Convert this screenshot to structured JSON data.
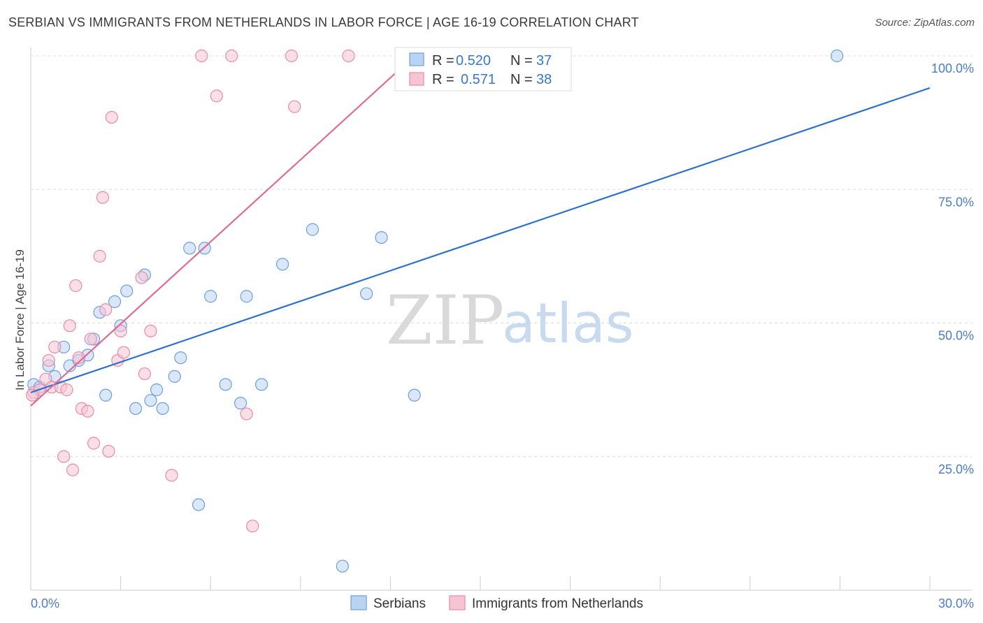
{
  "title": "SERBIAN VS IMMIGRANTS FROM NETHERLANDS IN LABOR FORCE | AGE 16-19 CORRELATION CHART",
  "source": "Source: ZipAtlas.com",
  "watermark": {
    "zip": "ZIP",
    "atlas": "atlas"
  },
  "colors": {
    "serbians_fill": "#b9d3f2",
    "serbians_stroke": "#6d9fdc",
    "serbians_line": "#2f72c9",
    "nl_fill": "#f7c4d3",
    "nl_stroke": "#e98aa8",
    "nl_line": "#e06a93",
    "grid": "#dcdcdc",
    "axis_label": "#4a7cc9"
  },
  "stats": [
    {
      "r_label": "R =",
      "r_value": "0.520",
      "n_label": "N =",
      "n_value": "37"
    },
    {
      "r_label": "R =",
      "r_value": "0.571",
      "n_label": "N =",
      "n_value": "38"
    }
  ],
  "chart_data": {
    "type": "scatter",
    "ylabel": "In Labor Force | Age 16-19",
    "xlim": [
      0,
      30
    ],
    "ylim": [
      0,
      100
    ],
    "x_tick_labels": [
      "0.0%",
      "30.0%"
    ],
    "y_ticks": [
      25,
      50,
      75,
      100
    ],
    "y_tick_labels": [
      "25.0%",
      "50.0%",
      "75.0%",
      "100.0%"
    ],
    "grid": true,
    "legend_position": "bottom-center",
    "series": [
      {
        "name": "Serbians",
        "points": [
          [
            0.1,
            38.5
          ],
          [
            0.3,
            38.0
          ],
          [
            0.6,
            42.0
          ],
          [
            0.8,
            40.0
          ],
          [
            1.1,
            45.5
          ],
          [
            1.3,
            42.0
          ],
          [
            1.6,
            43.0
          ],
          [
            1.9,
            44.0
          ],
          [
            2.1,
            47.0
          ],
          [
            2.3,
            52.0
          ],
          [
            2.5,
            36.5
          ],
          [
            2.8,
            54.0
          ],
          [
            3.0,
            49.5
          ],
          [
            3.2,
            56.0
          ],
          [
            3.5,
            34.0
          ],
          [
            3.8,
            59.0
          ],
          [
            4.0,
            35.5
          ],
          [
            4.2,
            37.5
          ],
          [
            4.4,
            34.0
          ],
          [
            4.8,
            40.0
          ],
          [
            5.0,
            43.5
          ],
          [
            5.3,
            64.0
          ],
          [
            5.6,
            16.0
          ],
          [
            5.8,
            64.0
          ],
          [
            6.0,
            55.0
          ],
          [
            6.5,
            38.5
          ],
          [
            7.0,
            35.0
          ],
          [
            7.2,
            55.0
          ],
          [
            7.7,
            38.5
          ],
          [
            8.4,
            61.0
          ],
          [
            9.4,
            67.5
          ],
          [
            10.4,
            4.5
          ],
          [
            11.2,
            55.5
          ],
          [
            11.7,
            66.0
          ],
          [
            12.8,
            36.5
          ],
          [
            13.5,
            100.0
          ],
          [
            26.9,
            100.0
          ]
        ],
        "trend": {
          "x": [
            0,
            30
          ],
          "y": [
            37.0,
            94.0
          ]
        }
      },
      {
        "name": "Immigrants from Netherlands",
        "points": [
          [
            0.1,
            37.0
          ],
          [
            0.3,
            37.5
          ],
          [
            0.5,
            39.5
          ],
          [
            0.6,
            43.0
          ],
          [
            0.7,
            38.0
          ],
          [
            0.8,
            45.5
          ],
          [
            1.0,
            38.0
          ],
          [
            1.1,
            25.0
          ],
          [
            1.2,
            37.5
          ],
          [
            1.3,
            49.5
          ],
          [
            1.4,
            22.5
          ],
          [
            1.5,
            57.0
          ],
          [
            1.6,
            43.5
          ],
          [
            1.7,
            34.0
          ],
          [
            1.9,
            33.5
          ],
          [
            2.0,
            47.0
          ],
          [
            2.1,
            27.5
          ],
          [
            2.3,
            62.5
          ],
          [
            2.4,
            73.5
          ],
          [
            2.5,
            52.5
          ],
          [
            2.6,
            26.0
          ],
          [
            2.7,
            88.5
          ],
          [
            2.9,
            43.0
          ],
          [
            3.0,
            48.5
          ],
          [
            3.1,
            44.5
          ],
          [
            3.7,
            58.5
          ],
          [
            3.8,
            40.5
          ],
          [
            4.0,
            48.5
          ],
          [
            4.7,
            21.5
          ],
          [
            5.7,
            100.0
          ],
          [
            6.2,
            92.5
          ],
          [
            6.7,
            100.0
          ],
          [
            7.2,
            33.0
          ],
          [
            7.4,
            12.0
          ],
          [
            8.7,
            100.0
          ],
          [
            8.8,
            90.5
          ],
          [
            10.6,
            100.0
          ],
          [
            0.05,
            36.5
          ]
        ],
        "trend": {
          "x": [
            0,
            12.8
          ],
          "y": [
            34.5,
            100.0
          ]
        }
      }
    ]
  }
}
